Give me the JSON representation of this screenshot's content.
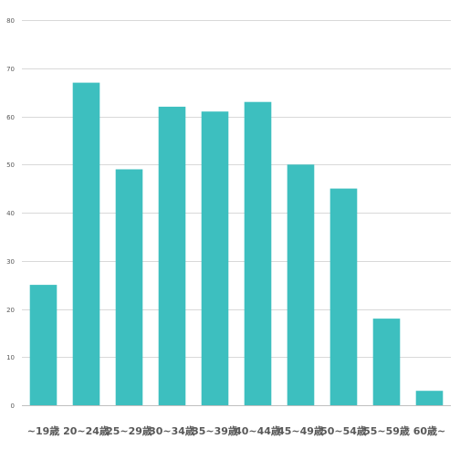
{
  "chart_data": {
    "type": "bar",
    "categories": [
      "~19歳",
      "20~24歳",
      "25~29歳",
      "30~34歳",
      "35~39歳",
      "40~44歳",
      "45~49歳",
      "50~54歳",
      "55~59歳",
      "60歳~"
    ],
    "values": [
      25,
      67,
      49,
      62,
      61,
      63,
      50,
      45,
      18,
      3
    ],
    "ylim": [
      0,
      80
    ],
    "yticks": [
      0,
      10,
      20,
      30,
      40,
      50,
      60,
      70,
      80
    ],
    "grid": true,
    "legend": "none",
    "bar_color": "#3dbfbf",
    "title": "",
    "xlabel": "",
    "ylabel": ""
  }
}
